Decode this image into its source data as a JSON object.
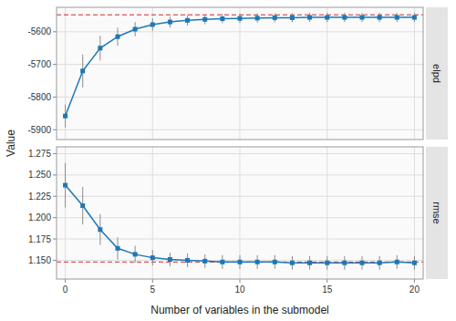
{
  "chart_data": [
    {
      "type": "line",
      "title": "elpd",
      "ylabel": "Value",
      "marker": "square",
      "line_style": "solid",
      "grid": true,
      "tick_labels": "y",
      "x": [
        0,
        1,
        2,
        3,
        4,
        5,
        6,
        7,
        8,
        9,
        10,
        11,
        12,
        13,
        14,
        15,
        16,
        17,
        18,
        19,
        20
      ],
      "values": [
        -5858,
        -5720,
        -5650,
        -5615,
        -5592,
        -5578,
        -5570,
        -5565,
        -5562,
        -5560,
        -5559,
        -5558,
        -5557,
        -5557,
        -5556,
        -5556,
        -5556,
        -5556,
        -5556,
        -5556,
        -5556
      ],
      "yerr_lo": [
        35,
        50,
        38,
        28,
        22,
        19,
        17,
        16,
        15,
        14,
        14,
        14,
        14,
        14,
        14,
        14,
        14,
        14,
        14,
        14,
        14
      ],
      "yerr_hi": [
        35,
        50,
        38,
        28,
        22,
        19,
        17,
        16,
        15,
        14,
        14,
        14,
        14,
        14,
        14,
        14,
        14,
        14,
        14,
        14,
        14
      ],
      "hline": -5548,
      "xlim": [
        -0.5,
        20.5
      ],
      "xticks": [
        0,
        5,
        10,
        15,
        20
      ],
      "ylim": [
        -5930,
        -5525
      ],
      "yticks": [
        -5900,
        -5800,
        -5700,
        -5600
      ]
    },
    {
      "type": "line",
      "title": "rmse",
      "xlabel": "Number of variables in the submodel",
      "marker": "square",
      "line_style": "solid",
      "grid": true,
      "x": [
        0,
        1,
        2,
        3,
        4,
        5,
        6,
        7,
        8,
        9,
        10,
        11,
        12,
        13,
        14,
        15,
        16,
        17,
        18,
        19,
        20
      ],
      "values": [
        1.238,
        1.214,
        1.186,
        1.164,
        1.157,
        1.153,
        1.151,
        1.15,
        1.149,
        1.148,
        1.148,
        1.148,
        1.148,
        1.147,
        1.147,
        1.147,
        1.147,
        1.147,
        1.147,
        1.148,
        1.147
      ],
      "yerr_lo": [
        0.026,
        0.022,
        0.018,
        0.013,
        0.01,
        0.009,
        0.008,
        0.008,
        0.008,
        0.008,
        0.008,
        0.008,
        0.008,
        0.008,
        0.008,
        0.008,
        0.008,
        0.008,
        0.008,
        0.008,
        0.008
      ],
      "yerr_hi": [
        0.026,
        0.022,
        0.018,
        0.013,
        0.01,
        0.009,
        0.008,
        0.008,
        0.008,
        0.008,
        0.008,
        0.008,
        0.008,
        0.008,
        0.008,
        0.008,
        0.008,
        0.008,
        0.008,
        0.008,
        0.008
      ],
      "hline": 1.148,
      "xlim": [
        -0.5,
        20.5
      ],
      "xticks": [
        0,
        5,
        10,
        15,
        20
      ],
      "ylim": [
        1.128,
        1.283
      ],
      "yticks": [
        {
          "value": 1.15,
          "label": "1.150"
        },
        {
          "value": 1.175,
          "label": "1.175"
        },
        {
          "value": 1.2,
          "label": "1.200"
        },
        {
          "value": 1.225,
          "label": "1.225"
        },
        {
          "value": 1.25,
          "label": "1.250"
        },
        {
          "value": 1.275,
          "label": "1.275"
        }
      ]
    }
  ]
}
